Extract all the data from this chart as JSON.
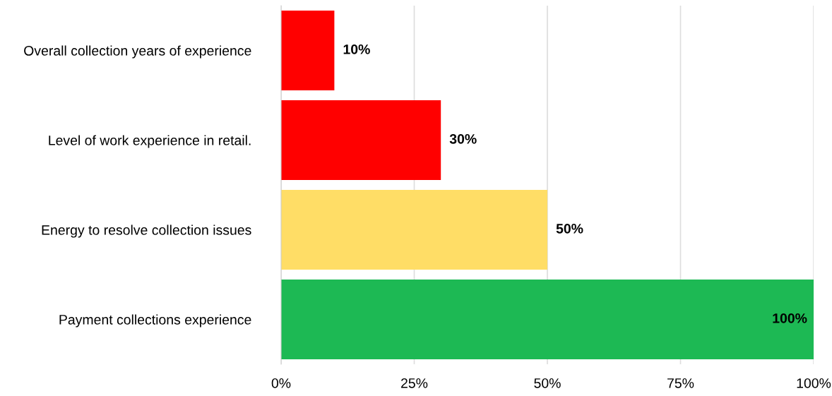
{
  "chart_data": {
    "type": "bar",
    "orientation": "horizontal",
    "categories": [
      "Overall collection years of experience",
      "Level of work experience in retail.",
      "Energy to resolve collection issues",
      "Payment collections experience"
    ],
    "values": [
      10,
      30,
      50,
      100
    ],
    "colors": [
      "#ff0000",
      "#ff0000",
      "#ffdd66",
      "#1db954"
    ],
    "value_labels": [
      "10%",
      "30%",
      "50%",
      "100%"
    ],
    "xlim": [
      0,
      100
    ],
    "xticks": [
      {
        "value": 0,
        "label": "0%"
      },
      {
        "value": 25,
        "label": "25%"
      },
      {
        "value": 50,
        "label": "50%"
      },
      {
        "value": 75,
        "label": "75%"
      },
      {
        "value": 100,
        "label": "100%"
      }
    ],
    "grid": "x"
  }
}
